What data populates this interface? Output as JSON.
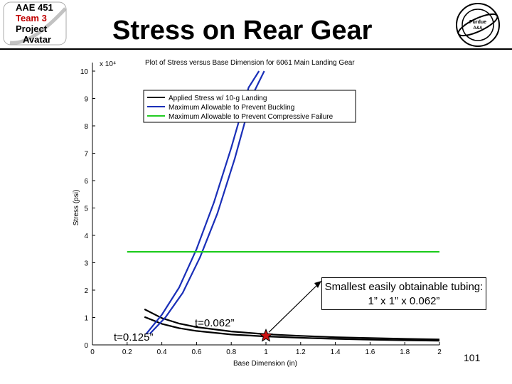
{
  "header": {
    "logo_lines": [
      "AAE 451",
      "Team 3",
      "Project",
      "Avatar"
    ],
    "title": "Stress on Rear Gear",
    "purdue_logo_text": "Purdue University Aeronautics & Astronautics"
  },
  "chart_data": {
    "type": "line",
    "title": "Plot of Stress versus Base Dimension for 6061 Main Landing Gear",
    "xlabel": "Base Dimension (in)",
    "ylabel": "Stress (psi)",
    "y_multiplier": "x 10⁴",
    "xlim": [
      0,
      2
    ],
    "ylim": [
      0,
      10
    ],
    "x_ticks": [
      "0",
      "0.2",
      "0.4",
      "0.6",
      "0.8",
      "1",
      "1.2",
      "1.4",
      "1.6",
      "1.8",
      "2"
    ],
    "y_ticks": [
      "0",
      "1",
      "2",
      "3",
      "4",
      "5",
      "6",
      "7",
      "8",
      "9",
      "10"
    ],
    "legend_position": "top-left",
    "series": [
      {
        "name": "Applied Stress w/ 10-g Landing",
        "color": "#000000",
        "x": [
          0.3,
          0.4,
          0.5,
          0.6,
          0.8,
          1.0,
          1.2,
          1.4,
          1.6,
          1.8,
          2.0
        ],
        "y": [
          1.3,
          0.98,
          0.78,
          0.65,
          0.49,
          0.39,
          0.33,
          0.28,
          0.25,
          0.22,
          0.2
        ]
      },
      {
        "name": "Applied Stress w/ 10-g Landing",
        "color": "#000000",
        "x": [
          0.3,
          0.4,
          0.5,
          0.6,
          0.8,
          1.0,
          1.2,
          1.4,
          1.6,
          1.8,
          2.0
        ],
        "y": [
          1.02,
          0.77,
          0.61,
          0.51,
          0.38,
          0.31,
          0.26,
          0.22,
          0.19,
          0.17,
          0.15
        ]
      },
      {
        "name": "Maximum Allowable to Prevent Buckling",
        "color": "#1a2fb8",
        "x": [
          0.31,
          0.4,
          0.5,
          0.6,
          0.7,
          0.8,
          0.9,
          0.96
        ],
        "y": [
          0.4,
          1.1,
          2.1,
          3.5,
          5.2,
          7.2,
          9.4,
          10.0
        ]
      },
      {
        "name": "Maximum Allowable to Prevent Buckling",
        "color": "#1a2fb8",
        "x": [
          0.33,
          0.42,
          0.52,
          0.62,
          0.72,
          0.82,
          0.92,
          0.99
        ],
        "y": [
          0.4,
          1.0,
          1.9,
          3.2,
          4.8,
          6.8,
          9.1,
          10.0
        ]
      },
      {
        "name": "Maximum Allowable to Prevent Compressive Failure",
        "color": "#22cc22",
        "x": [
          0.2,
          2.0
        ],
        "y": [
          3.4,
          3.4
        ]
      }
    ],
    "legend": [
      {
        "label": "Applied Stress w/ 10-g Landing",
        "color": "#000000"
      },
      {
        "label": "Maximum Allowable to Prevent Buckling",
        "color": "#1a2fb8"
      },
      {
        "label": "Maximum Allowable to Prevent Compressive Failure",
        "color": "#22cc22"
      }
    ],
    "annotations": {
      "callout": "Smallest easily obtainable tubing: 1” x 1” x 0.062”",
      "label_t062": "t=0.062”",
      "label_t125": "t=0.125”",
      "marker": {
        "x": 1.0,
        "y": 0.33,
        "color": "#cc1111"
      }
    }
  },
  "footer": {
    "page_number": "101"
  }
}
